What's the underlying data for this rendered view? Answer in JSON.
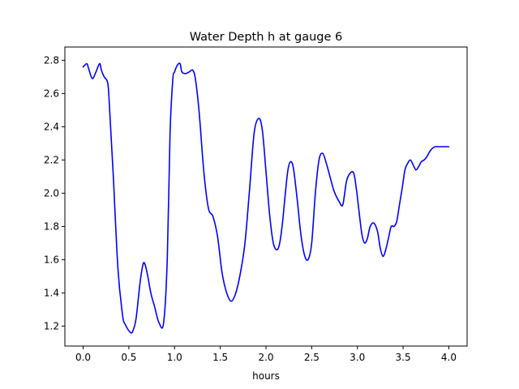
{
  "chart_data": {
    "type": "line",
    "title": "Water Depth h at gauge 6",
    "xlabel": "hours",
    "ylabel": "",
    "xlim": [
      -0.2,
      4.2
    ],
    "ylim": [
      1.08,
      2.88
    ],
    "xticks": [
      0.0,
      0.5,
      1.0,
      1.5,
      2.0,
      2.5,
      3.0,
      3.5,
      4.0
    ],
    "xtick_labels": [
      "0.0",
      "0.5",
      "1.0",
      "1.5",
      "2.0",
      "2.5",
      "3.0",
      "3.5",
      "4.0"
    ],
    "yticks": [
      1.2,
      1.4,
      1.6,
      1.8,
      2.0,
      2.2,
      2.4,
      2.6,
      2.8
    ],
    "ytick_labels": [
      "1.2",
      "1.4",
      "1.6",
      "1.8",
      "2.0",
      "2.2",
      "2.4",
      "2.6",
      "2.8"
    ],
    "grid": false,
    "series": [
      {
        "color": "#0000ff",
        "x": [
          0.0,
          0.04,
          0.06,
          0.1,
          0.14,
          0.18,
          0.2,
          0.23,
          0.27,
          0.29,
          0.33,
          0.38,
          0.43,
          0.46,
          0.52,
          0.55,
          0.58,
          0.62,
          0.65,
          0.67,
          0.7,
          0.74,
          0.78,
          0.83,
          0.88,
          0.92,
          0.95,
          0.98,
          1.0,
          1.03,
          1.06,
          1.08,
          1.12,
          1.16,
          1.2,
          1.23,
          1.27,
          1.32,
          1.37,
          1.42,
          1.47,
          1.52,
          1.57,
          1.62,
          1.67,
          1.72,
          1.77,
          1.82,
          1.87,
          1.92,
          1.96,
          2.0,
          2.04,
          2.08,
          2.12,
          2.15,
          2.18,
          2.21,
          2.24,
          2.27,
          2.3,
          2.34,
          2.38,
          2.42,
          2.46,
          2.5,
          2.54,
          2.58,
          2.62,
          2.66,
          2.7,
          2.74,
          2.77,
          2.8,
          2.84,
          2.88,
          2.92,
          2.96,
          2.99,
          3.02,
          3.05,
          3.08,
          3.11,
          3.14,
          3.18,
          3.22,
          3.25,
          3.28,
          3.31,
          3.34,
          3.37,
          3.4,
          3.43,
          3.46,
          3.49,
          3.52,
          3.55,
          3.58,
          3.61,
          3.64,
          3.67,
          3.7,
          3.73,
          3.76,
          3.79,
          3.82,
          3.85,
          3.88,
          3.91,
          3.94,
          3.97,
          4.0
        ],
        "y": [
          2.76,
          2.78,
          2.75,
          2.69,
          2.73,
          2.78,
          2.74,
          2.7,
          2.66,
          2.5,
          2.1,
          1.55,
          1.27,
          1.21,
          1.16,
          1.18,
          1.25,
          1.45,
          1.56,
          1.58,
          1.52,
          1.4,
          1.32,
          1.22,
          1.22,
          1.6,
          2.35,
          2.68,
          2.73,
          2.77,
          2.78,
          2.73,
          2.72,
          2.73,
          2.74,
          2.68,
          2.48,
          2.13,
          1.91,
          1.86,
          1.74,
          1.52,
          1.4,
          1.35,
          1.4,
          1.52,
          1.7,
          2.02,
          2.36,
          2.45,
          2.38,
          2.13,
          1.87,
          1.7,
          1.66,
          1.7,
          1.82,
          1.99,
          2.14,
          2.19,
          2.15,
          1.97,
          1.76,
          1.63,
          1.6,
          1.7,
          2.0,
          2.2,
          2.24,
          2.18,
          2.1,
          2.02,
          1.98,
          1.95,
          1.93,
          2.07,
          2.12,
          2.12,
          2.02,
          1.88,
          1.75,
          1.7,
          1.73,
          1.8,
          1.82,
          1.77,
          1.67,
          1.62,
          1.66,
          1.73,
          1.8,
          1.8,
          1.83,
          1.93,
          2.03,
          2.14,
          2.18,
          2.2,
          2.17,
          2.14,
          2.16,
          2.19,
          2.2,
          2.22,
          2.25,
          2.27,
          2.28,
          2.28,
          2.28,
          2.28,
          2.28,
          2.28
        ]
      }
    ]
  }
}
